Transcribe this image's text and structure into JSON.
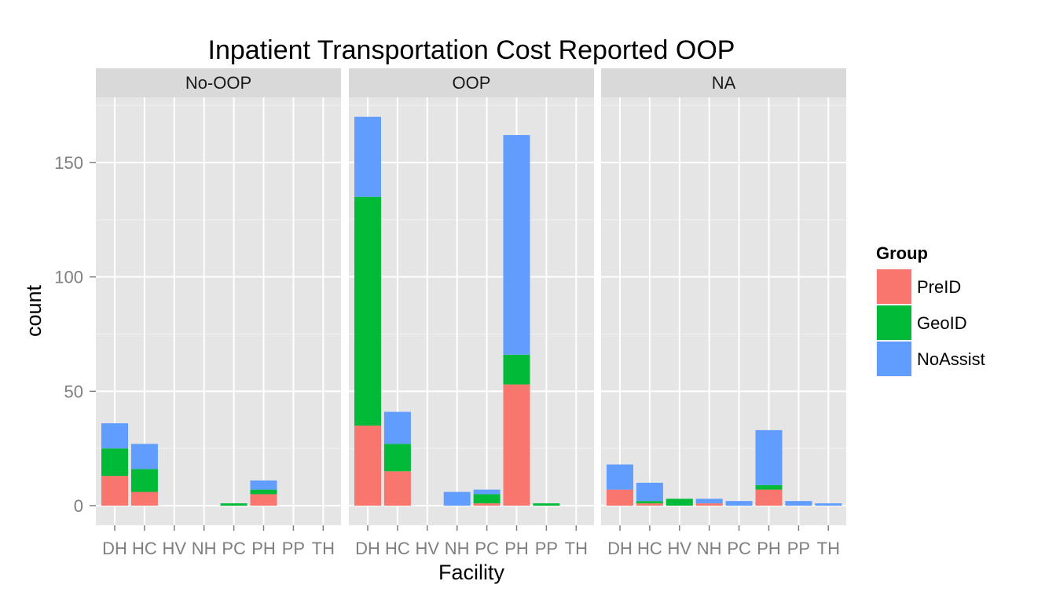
{
  "chart_data": {
    "type": "bar",
    "stacked": true,
    "title": "Inpatient Transportation Cost Reported OOP",
    "xlabel": "Facility",
    "ylabel": "count",
    "ylim": [
      0,
      178
    ],
    "yticks": [
      0,
      50,
      100,
      150
    ],
    "grid": true,
    "legend_placement": "right",
    "categories": [
      "DH",
      "HC",
      "HV",
      "NH",
      "PC",
      "PH",
      "PP",
      "TH"
    ],
    "legend": {
      "title": "Group",
      "entries": [
        {
          "name": "PreID",
          "color": "#F8766D"
        },
        {
          "name": "GeoID",
          "color": "#00BA38"
        },
        {
          "name": "NoAssist",
          "color": "#619CFF"
        }
      ]
    },
    "panels": [
      {
        "label": "No-OOP",
        "series": [
          {
            "name": "PreID",
            "values": [
              13,
              6,
              0,
              0,
              0,
              5,
              0,
              0
            ]
          },
          {
            "name": "GeoID",
            "values": [
              12,
              10,
              0,
              0,
              1,
              2,
              0,
              0
            ]
          },
          {
            "name": "NoAssist",
            "values": [
              11,
              11,
              0,
              0,
              0,
              4,
              0,
              0
            ]
          }
        ]
      },
      {
        "label": "OOP",
        "series": [
          {
            "name": "PreID",
            "values": [
              35,
              15,
              0,
              0,
              1,
              53,
              0,
              0
            ]
          },
          {
            "name": "GeoID",
            "values": [
              100,
              12,
              0,
              0,
              4,
              13,
              1,
              0
            ]
          },
          {
            "name": "NoAssist",
            "values": [
              35,
              14,
              0,
              6,
              2,
              96,
              0,
              0
            ]
          }
        ]
      },
      {
        "label": "NA",
        "series": [
          {
            "name": "PreID",
            "values": [
              7,
              1,
              0,
              1,
              0,
              7,
              0,
              0
            ]
          },
          {
            "name": "GeoID",
            "values": [
              0,
              1,
              3,
              0,
              0,
              2,
              0,
              0
            ]
          },
          {
            "name": "NoAssist",
            "values": [
              11,
              8,
              0,
              2,
              2,
              24,
              2,
              1
            ]
          }
        ]
      }
    ]
  }
}
